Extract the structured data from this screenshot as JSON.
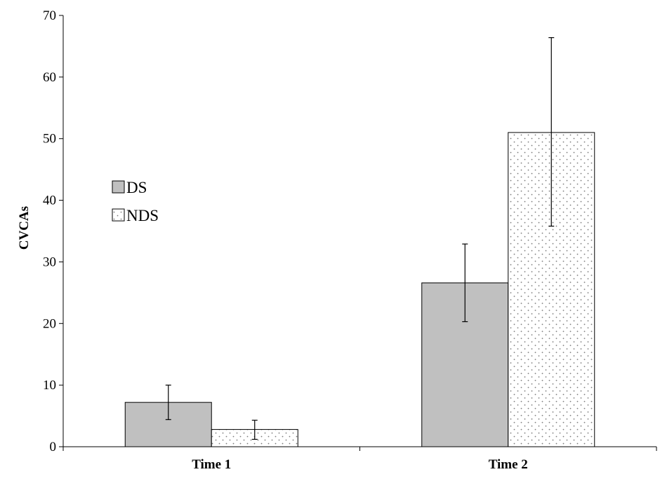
{
  "chart_data": {
    "type": "bar",
    "categories": [
      "Time 1",
      "Time 2"
    ],
    "series": [
      {
        "name": "DS",
        "values": [
          7.2,
          26.6
        ],
        "error_low": [
          4.4,
          20.3
        ],
        "error_high": [
          10.0,
          32.9
        ],
        "fill": "#c0c0c0",
        "pattern": "solid"
      },
      {
        "name": "NDS",
        "values": [
          2.8,
          51.0
        ],
        "error_low": [
          1.2,
          35.8
        ],
        "error_high": [
          4.3,
          66.4
        ],
        "fill": "#ffffff",
        "pattern": "dotted"
      }
    ],
    "title": "",
    "xlabel": "",
    "ylabel": "CVCAs",
    "ylim": [
      0,
      70
    ],
    "yticks": [
      "0",
      "10",
      "20",
      "30",
      "40",
      "50",
      "60",
      "70"
    ],
    "grid": false,
    "legend_position": "left-middle"
  }
}
